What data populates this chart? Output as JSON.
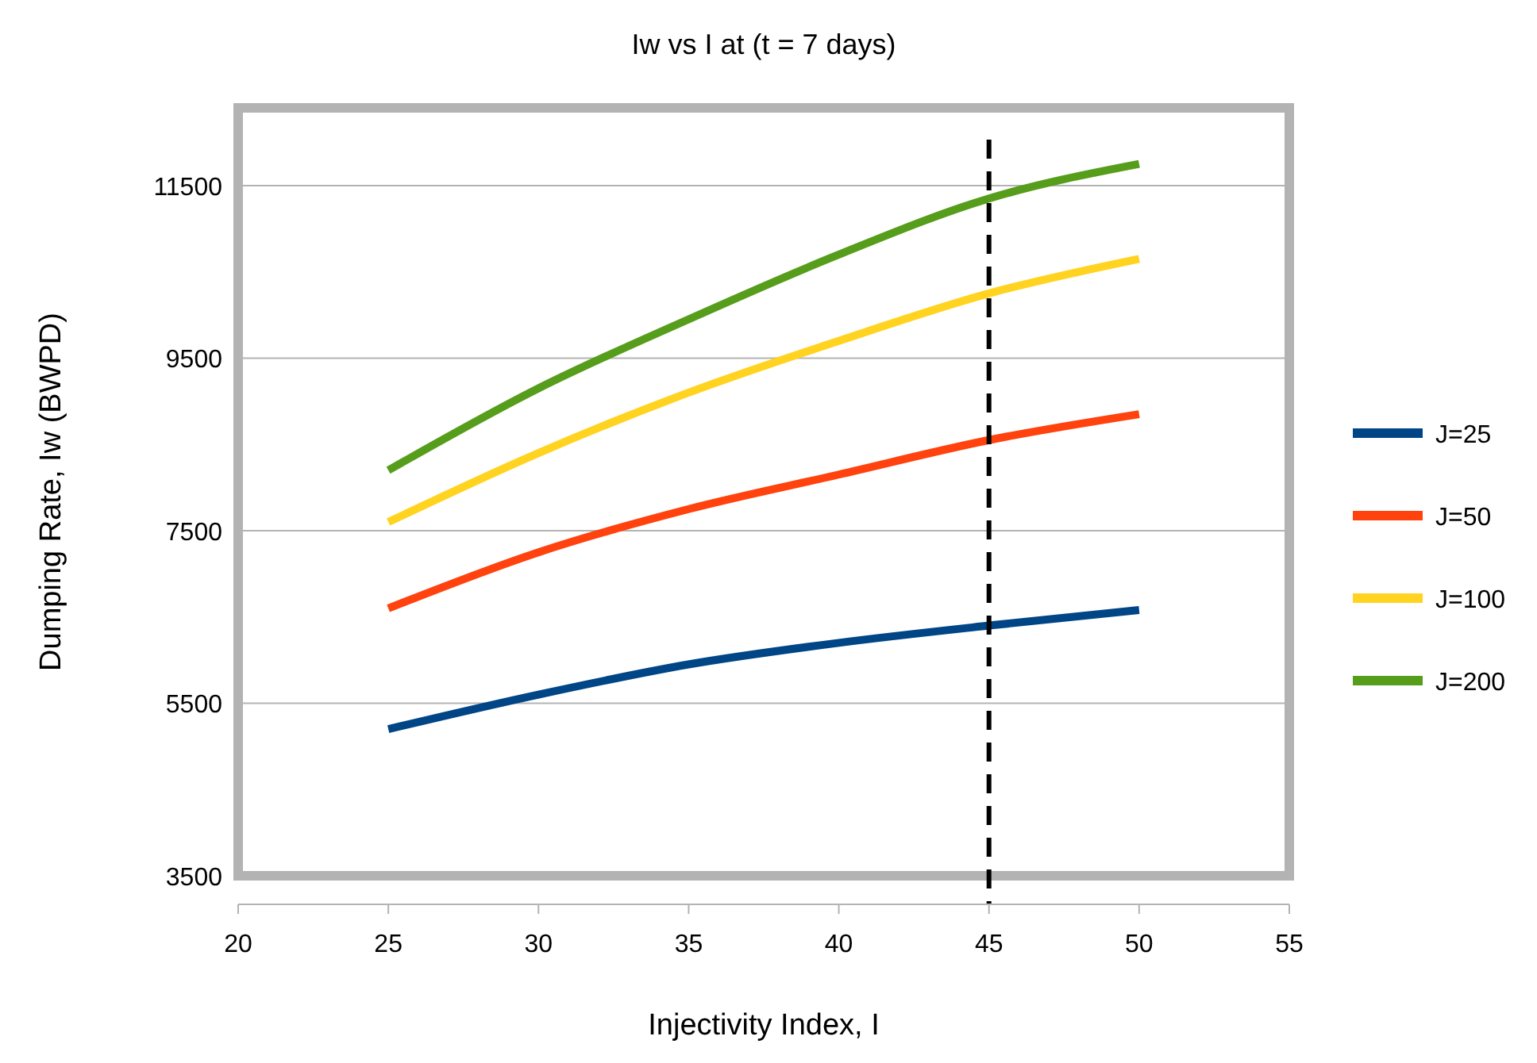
{
  "chart_data": {
    "type": "line",
    "title": "Iw vs I at (t = 7 days)",
    "xlabel": "Injectivity Index, I",
    "ylabel": "Dumping Rate, Iw (BWPD)",
    "x": [
      25,
      30,
      35,
      40,
      45,
      50
    ],
    "series": [
      {
        "name": "J=25",
        "color": "#004586",
        "values": [
          5200,
          5600,
          5950,
          6200,
          6400,
          6580
        ]
      },
      {
        "name": "J=50",
        "color": "#ff420e",
        "values": [
          6600,
          7250,
          7750,
          8150,
          8550,
          8850
        ]
      },
      {
        "name": "J=100",
        "color": "#ffd320",
        "values": [
          7600,
          8400,
          9100,
          9700,
          10250,
          10650
        ]
      },
      {
        "name": "J=200",
        "color": "#579d1c",
        "values": [
          8200,
          9150,
          9950,
          10700,
          11350,
          11750
        ]
      }
    ],
    "xlim": [
      20,
      55
    ],
    "xticks": [
      20,
      25,
      30,
      35,
      40,
      45,
      50,
      55
    ],
    "ylim": [
      3500,
      12400
    ],
    "yticks": [
      3500,
      5500,
      7500,
      9500,
      11500
    ],
    "grid": "y",
    "legend": "right",
    "line_style": "solid",
    "marker": "none",
    "ref_lines": [
      {
        "axis": "x",
        "value": 45,
        "color": "#000000",
        "line_style": "dashed"
      }
    ]
  }
}
